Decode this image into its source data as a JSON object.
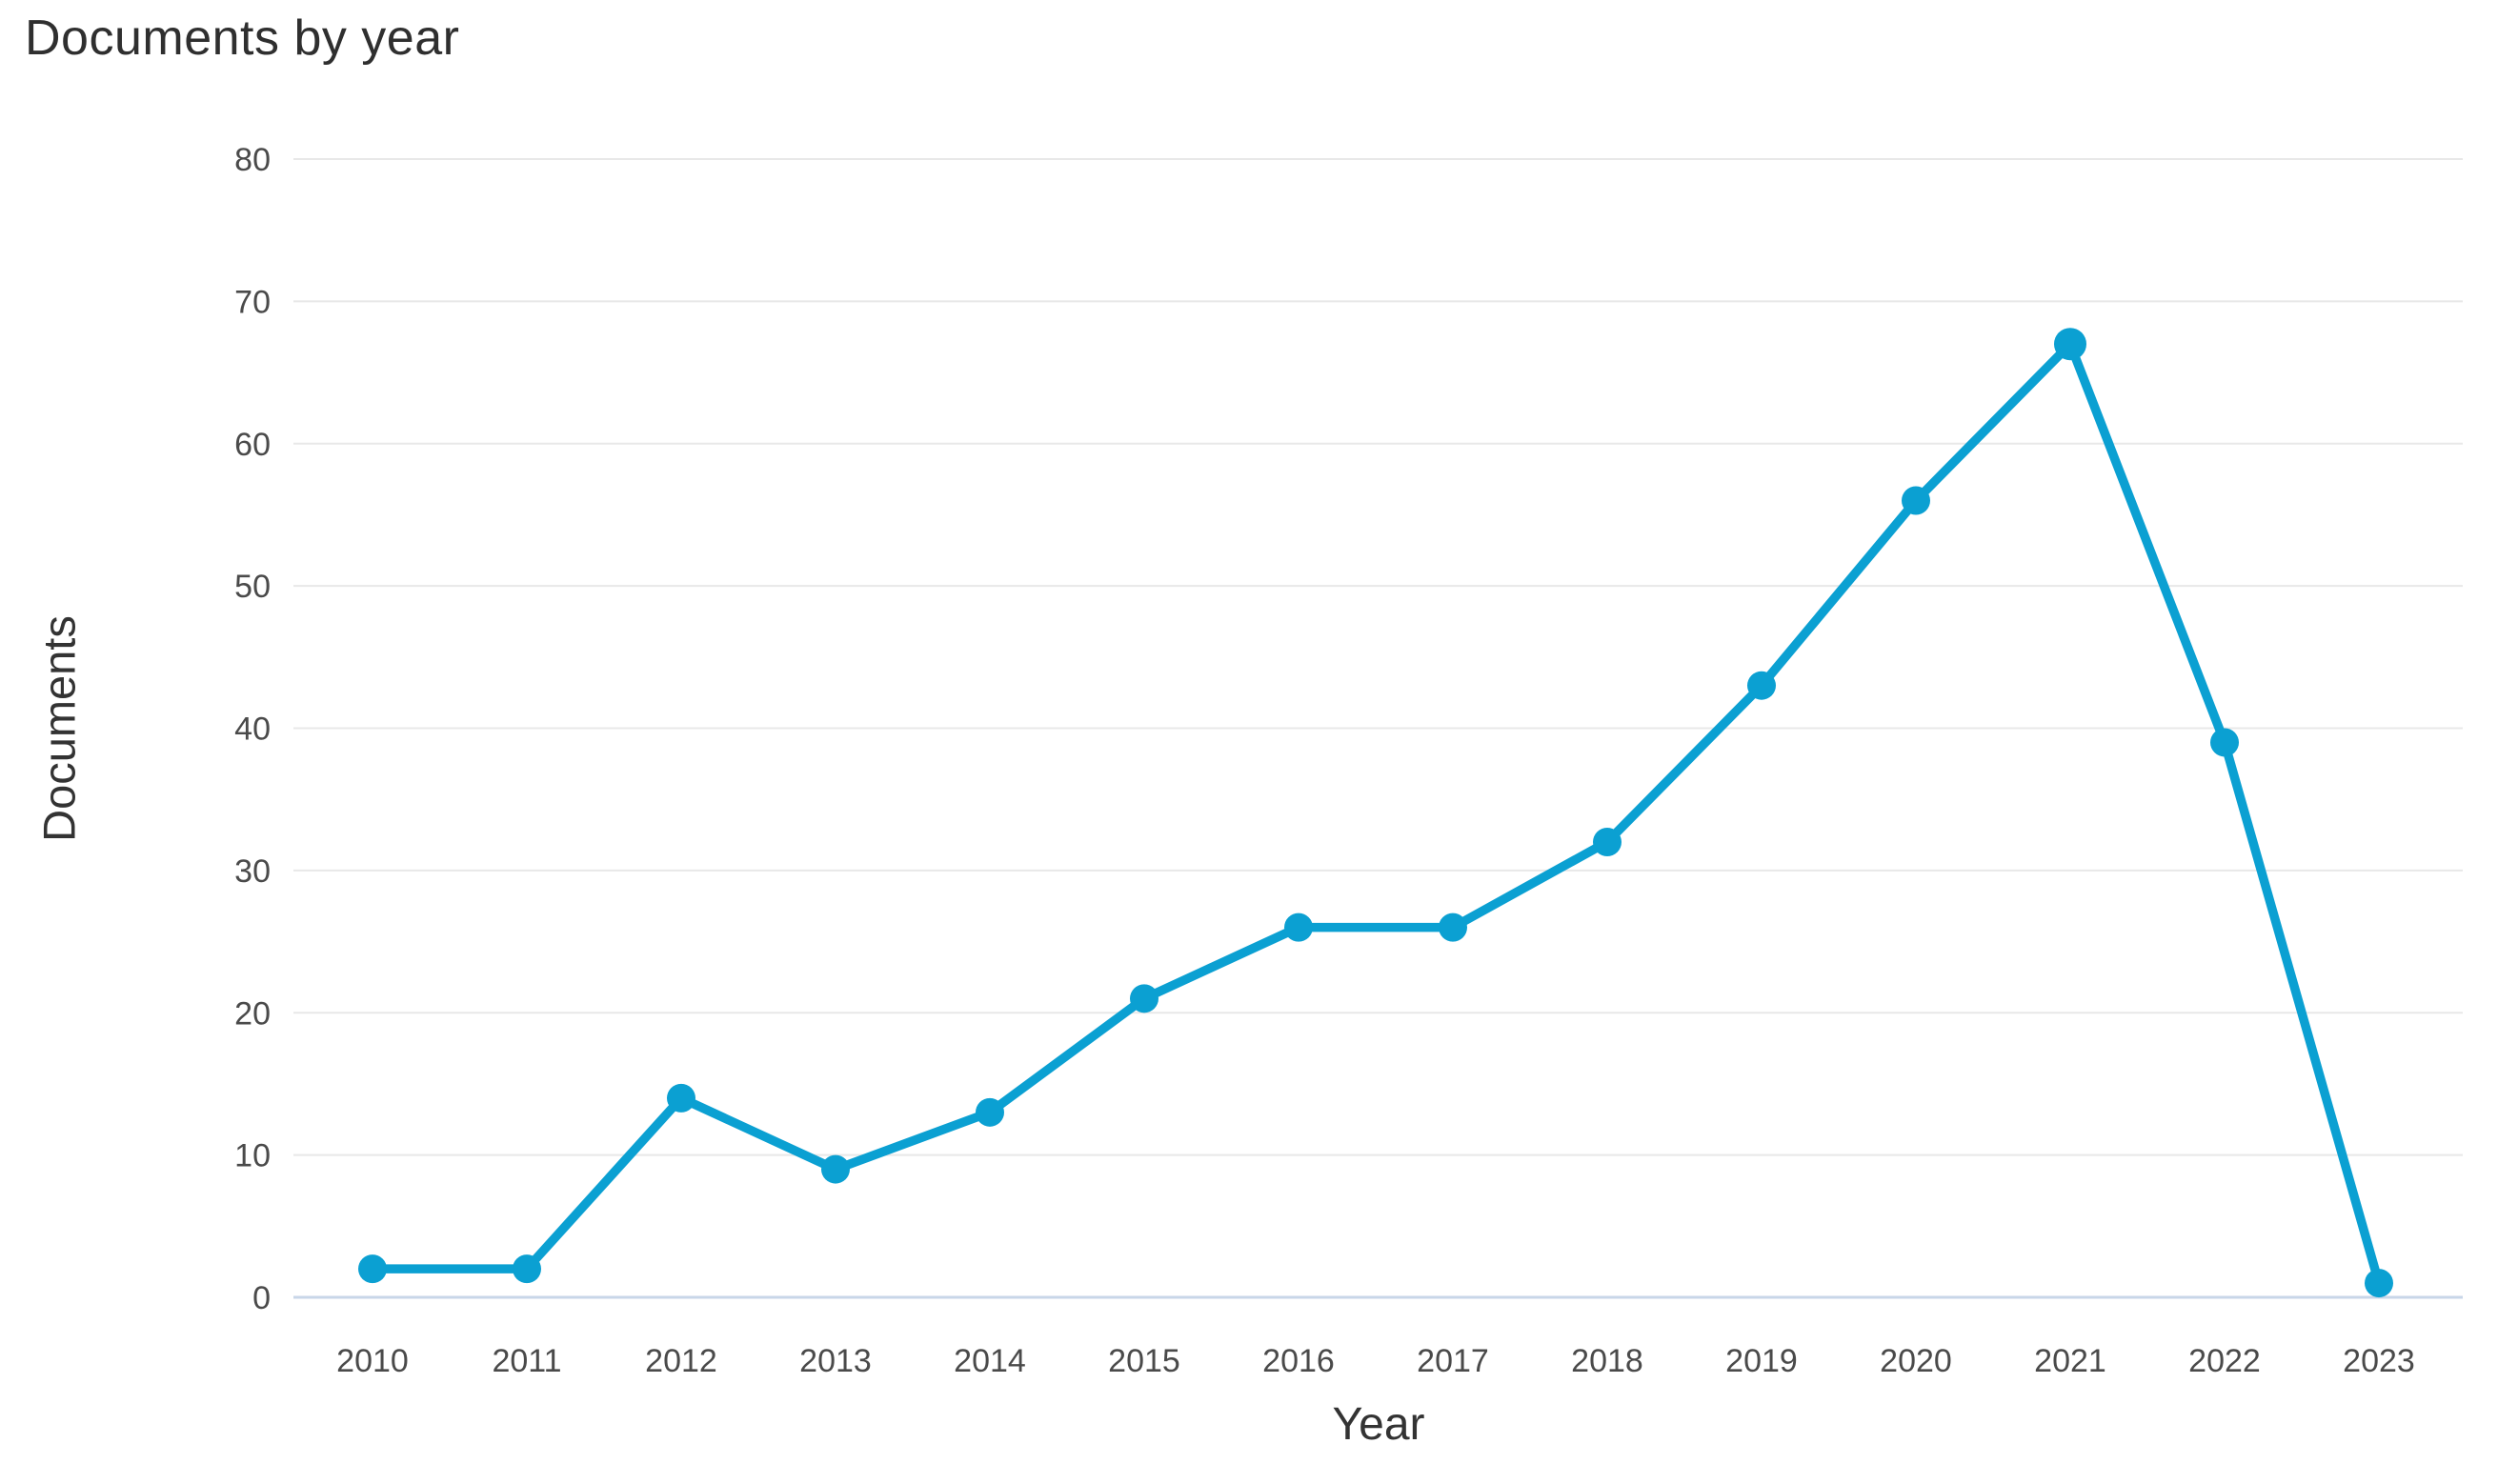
{
  "chart_data": {
    "type": "line",
    "title": "Documents by year",
    "xlabel": "Year",
    "ylabel": "Documents",
    "x": [
      2010,
      2011,
      2012,
      2013,
      2014,
      2015,
      2016,
      2017,
      2018,
      2019,
      2020,
      2021,
      2022,
      2023
    ],
    "series": [
      {
        "name": "Documents",
        "values": [
          2,
          2,
          14,
          9,
          13,
          21,
          26,
          26,
          32,
          43,
          56,
          67,
          39,
          1
        ]
      }
    ],
    "ylim": [
      0,
      80
    ],
    "yticks": [
      0,
      10,
      20,
      30,
      40,
      50,
      60,
      70,
      80
    ],
    "grid": "horizontal",
    "legend_position": "none",
    "colors": {
      "line": "#0ba0d2",
      "marker": "#0ba0d2",
      "gridline": "#e8e8e8",
      "baseline": "#c8d6e8",
      "tick_text": "#4a4a4a",
      "title_text": "#2f2f2f"
    }
  }
}
